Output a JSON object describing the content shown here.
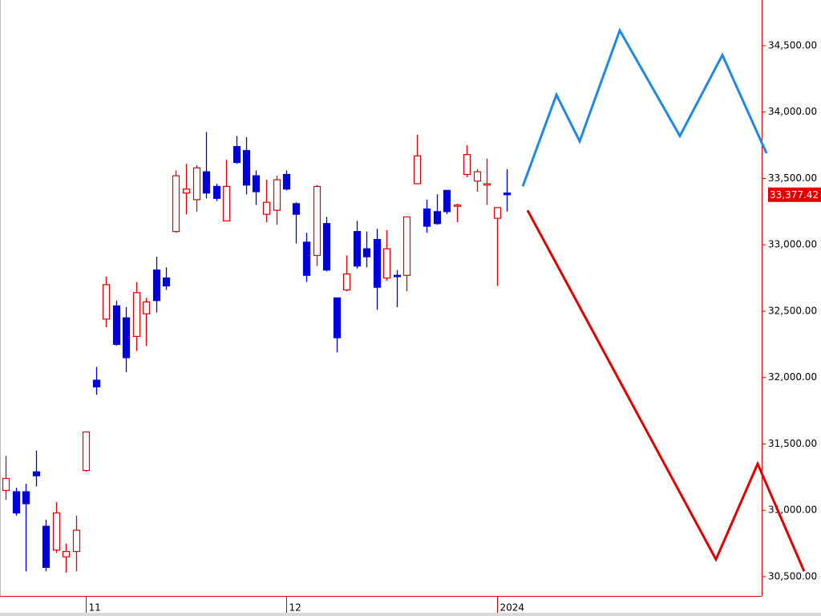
{
  "chart_data": {
    "type": "candlestick",
    "categories": [
      null,
      null,
      null,
      null,
      null,
      null,
      null,
      null,
      "11",
      null,
      null,
      null,
      null,
      null,
      null,
      null,
      null,
      null,
      null,
      null,
      null,
      null,
      null,
      null,
      null,
      null,
      null,
      null,
      "12",
      null,
      null,
      null,
      null,
      null,
      null,
      null,
      null,
      null,
      null,
      null,
      null,
      null,
      null,
      null,
      null,
      null,
      null,
      null,
      null,
      "2024",
      null
    ],
    "open": [
      31150,
      31140,
      31140,
      31290,
      30880,
      30700,
      30650,
      30690,
      31300,
      31980,
      32440,
      32540,
      32450,
      32310,
      32480,
      32810,
      32750,
      33100,
      33390,
      33340,
      33550,
      33440,
      33180,
      33740,
      33710,
      33520,
      33230,
      33260,
      33530,
      33310,
      33020,
      32920,
      33160,
      32600,
      32660,
      33100,
      32970,
      33040,
      32750,
      32770,
      32770,
      33460,
      33270,
      33250,
      33410,
      33290,
      33530,
      33480,
      33450,
      33200,
      33390
    ],
    "high": [
      31410,
      31170,
      31200,
      31450,
      30930,
      31060,
      30750,
      30960,
      31590,
      32080,
      32760,
      32580,
      32530,
      32720,
      32600,
      32910,
      32830,
      33560,
      33610,
      33600,
      33850,
      33460,
      33640,
      33820,
      33810,
      33560,
      33490,
      33520,
      33560,
      33320,
      33090,
      33450,
      33210,
      32600,
      32920,
      33180,
      33100,
      33120,
      33110,
      32810,
      33210,
      33830,
      33340,
      33380,
      33410,
      33310,
      33750,
      33570,
      33650,
      33280,
      33570
    ],
    "low": [
      31080,
      30960,
      30540,
      31180,
      30540,
      30680,
      30530,
      30540,
      31290,
      31870,
      32380,
      32240,
      32040,
      32200,
      32240,
      32490,
      32660,
      33090,
      33230,
      33250,
      33350,
      33330,
      33180,
      33610,
      33380,
      33300,
      33170,
      33150,
      33410,
      33010,
      32720,
      32840,
      32800,
      32190,
      32650,
      32820,
      32830,
      32510,
      32730,
      32530,
      32650,
      33460,
      33090,
      33150,
      33230,
      33170,
      33510,
      33400,
      33300,
      32690,
      33250
    ],
    "close": [
      31240,
      30980,
      31050,
      31260,
      30570,
      30980,
      30690,
      30850,
      31590,
      31930,
      32700,
      32250,
      32150,
      32640,
      32570,
      32580,
      32690,
      33520,
      33420,
      33580,
      33390,
      33350,
      33440,
      33620,
      33450,
      33400,
      33320,
      33490,
      33420,
      33230,
      32770,
      33440,
      32810,
      32300,
      32780,
      32840,
      32910,
      32680,
      32970,
      32760,
      33210,
      33670,
      33140,
      33160,
      33250,
      33300,
      33680,
      33550,
      33460,
      33280,
      33377.42
    ],
    "last_price": {
      "value": 33377.42,
      "label": "33,377.42"
    },
    "up_color": "#e00000",
    "down_color": "#0000dd",
    "projections": [
      {
        "color": "#1e88e5",
        "x": [
          51.6,
          54.96,
          57.28,
          61.28,
          67.28,
          71.52,
          75.92
        ],
        "values": [
          33440,
          34130,
          33780,
          34615,
          33820,
          34430,
          33690
        ]
      },
      {
        "color": "#e00000",
        "x": [
          52.08,
          70.88,
          75.04,
          79.68
        ],
        "values": [
          33260,
          30630,
          31350,
          30540
        ]
      }
    ],
    "xlim": [
      -0.56,
      75.44
    ],
    "ylim": [
      30355,
      34844
    ],
    "yticks": [
      {
        "value": 30500,
        "label": "30,500.00"
      },
      {
        "value": 31000,
        "label": "31,000.00"
      },
      {
        "value": 31500,
        "label": "31,500.00"
      },
      {
        "value": 32000,
        "label": "32,000.00"
      },
      {
        "value": 32500,
        "label": "32,500.00"
      },
      {
        "value": 33000,
        "label": "33,000.00"
      },
      {
        "value": 33500,
        "label": "33,500.00"
      },
      {
        "value": 34000,
        "label": "34,000.00"
      },
      {
        "value": 34500,
        "label": "34,500.00"
      }
    ]
  }
}
